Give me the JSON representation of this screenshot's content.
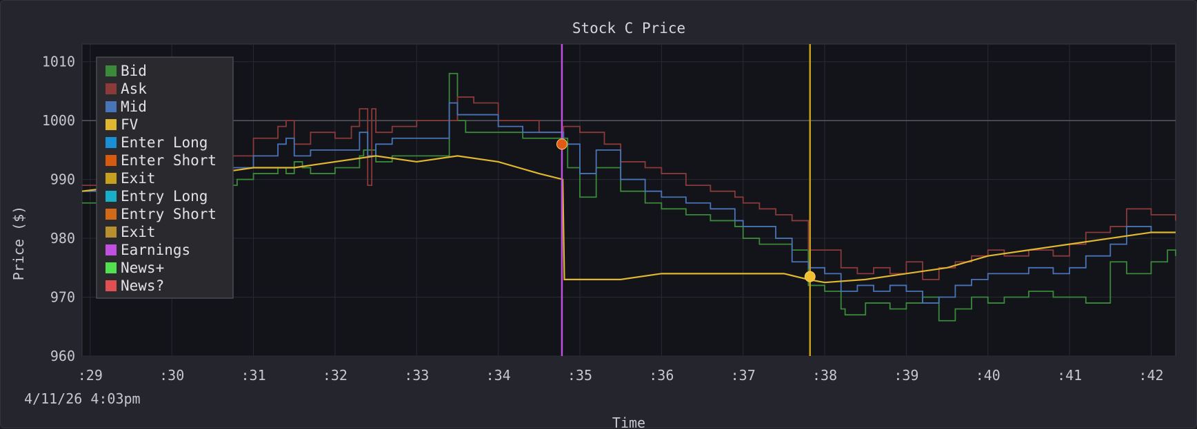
{
  "timestamp": "4/11/26 4:03pm",
  "chart_data": {
    "type": "line",
    "title": "Stock C Price",
    "xlabel": "Time",
    "ylabel": "Price ($)",
    "xlim": [
      28.9,
      42.3
    ],
    "ylim": [
      960,
      1013
    ],
    "x_ticks": [
      29,
      30,
      31,
      32,
      33,
      34,
      35,
      36,
      37,
      38,
      39,
      40,
      41,
      42
    ],
    "x_tick_labels": [
      ":29",
      ":30",
      ":31",
      ":32",
      ":33",
      ":34",
      ":35",
      ":36",
      ":37",
      ":38",
      ":39",
      ":40",
      ":41",
      ":42"
    ],
    "y_ticks": [
      960,
      970,
      980,
      990,
      1000,
      1010
    ],
    "y_tick_labels": [
      "960",
      "970",
      "980",
      "990",
      "1000",
      "1010"
    ],
    "grid": true,
    "reference_line_y": 1000,
    "legend": {
      "placement": "top-left",
      "entries": [
        {
          "label": "Bid",
          "color": "#3a8a3a"
        },
        {
          "label": "Ask",
          "color": "#8b3a3a"
        },
        {
          "label": "Mid",
          "color": "#4a74b8"
        },
        {
          "label": "FV",
          "color": "#e0b830"
        },
        {
          "label": "Enter Long",
          "color": "#1a8fd6"
        },
        {
          "label": "Enter Short",
          "color": "#d65a10"
        },
        {
          "label": "Exit",
          "color": "#c8a020"
        },
        {
          "label": "Entry Long",
          "color": "#18b0c8"
        },
        {
          "label": "Entry Short",
          "color": "#d06a18"
        },
        {
          "label": "Exit",
          "color": "#b89030"
        },
        {
          "label": "Earnings",
          "color": "#c050e0"
        },
        {
          "label": "News+",
          "color": "#50e050"
        },
        {
          "label": "News?",
          "color": "#e05050"
        }
      ]
    },
    "series": [
      {
        "name": "Bid",
        "color": "#3a8a3a",
        "x": [
          28.9,
          29.5,
          30.0,
          30.7,
          30.8,
          31.0,
          31.3,
          31.4,
          31.5,
          31.6,
          31.7,
          32.0,
          32.3,
          32.35,
          32.5,
          32.7,
          33.0,
          33.3,
          33.4,
          33.5,
          33.6,
          34.0,
          34.3,
          34.8,
          34.85,
          35.0,
          35.2,
          35.5,
          35.8,
          36.0,
          36.3,
          36.6,
          36.9,
          37.0,
          37.2,
          37.4,
          37.6,
          37.8,
          38.0,
          38.2,
          38.25,
          38.5,
          38.8,
          39.0,
          39.2,
          39.4,
          39.6,
          39.8,
          40.0,
          40.2,
          40.5,
          40.8,
          41.0,
          41.2,
          41.5,
          41.7,
          42.0,
          42.2,
          42.3
        ],
        "y": [
          986,
          987,
          989,
          989,
          990,
          991,
          992,
          991,
          993,
          992,
          991,
          992,
          994,
          995,
          993,
          994,
          994,
          994,
          1008,
          1000,
          998,
          998,
          997,
          997,
          992,
          987,
          992,
          988,
          986,
          985,
          984,
          983,
          982,
          980,
          979,
          979,
          978,
          972,
          971,
          968,
          967,
          969,
          968,
          969,
          970,
          966,
          968,
          970,
          969,
          970,
          971,
          970,
          970,
          969,
          976,
          974,
          976,
          978,
          977
        ]
      },
      {
        "name": "Ask",
        "color": "#8b3a3a",
        "x": [
          28.9,
          29.5,
          30.0,
          30.5,
          31.0,
          31.3,
          31.4,
          31.5,
          31.7,
          32.0,
          32.2,
          32.3,
          32.4,
          32.45,
          32.5,
          32.7,
          33.0,
          33.3,
          33.5,
          33.7,
          34.0,
          34.3,
          34.5,
          34.8,
          35.0,
          35.3,
          35.5,
          35.8,
          36.0,
          36.3,
          36.6,
          36.9,
          37.0,
          37.2,
          37.4,
          37.6,
          37.8,
          38.0,
          38.2,
          38.4,
          38.6,
          38.8,
          39.0,
          39.2,
          39.4,
          39.6,
          39.8,
          40.0,
          40.2,
          40.5,
          40.8,
          41.0,
          41.2,
          41.5,
          41.7,
          42.0,
          42.3
        ],
        "y": [
          989,
          990,
          992,
          994,
          997,
          999,
          1000,
          996,
          998,
          997,
          999,
          1002,
          989,
          1002,
          998,
          999,
          1000,
          1000,
          1004,
          1003,
          1000,
          1000,
          998,
          999,
          998,
          996,
          993,
          992,
          991,
          989,
          988,
          987,
          986,
          985,
          984,
          983,
          978,
          978,
          975,
          974,
          975,
          974,
          976,
          973,
          975,
          976,
          977,
          978,
          977,
          978,
          977,
          979,
          981,
          982,
          985,
          984,
          983
        ]
      },
      {
        "name": "Mid",
        "color": "#4a74b8",
        "x": [
          28.9,
          29.5,
          30.0,
          30.5,
          31.0,
          31.3,
          31.4,
          31.5,
          31.7,
          32.0,
          32.3,
          32.4,
          32.5,
          32.7,
          33.0,
          33.3,
          33.4,
          33.5,
          33.7,
          34.0,
          34.3,
          34.6,
          34.8,
          35.0,
          35.2,
          35.5,
          35.8,
          36.0,
          36.3,
          36.6,
          36.9,
          37.0,
          37.2,
          37.4,
          37.6,
          37.8,
          38.0,
          38.2,
          38.4,
          38.6,
          38.8,
          39.0,
          39.2,
          39.4,
          39.6,
          39.8,
          40.0,
          40.2,
          40.5,
          40.8,
          41.0,
          41.2,
          41.5,
          41.7,
          42.0,
          42.3
        ],
        "y": [
          988,
          988,
          990,
          992,
          994,
          996,
          997,
          994,
          995,
          995,
          998,
          994,
          996,
          997,
          997,
          997,
          1003,
          1001,
          1001,
          999,
          998,
          998,
          996,
          991,
          995,
          990,
          988,
          987,
          986,
          985,
          983,
          982,
          982,
          980,
          976,
          975,
          974,
          971,
          972,
          971,
          972,
          971,
          969,
          970,
          972,
          973,
          974,
          974,
          975,
          974,
          975,
          977,
          979,
          982,
          981,
          981
        ]
      },
      {
        "name": "FV",
        "color": "#e0b830",
        "x": [
          28.9,
          29.5,
          30.0,
          30.5,
          31.0,
          31.5,
          32.0,
          32.5,
          33.0,
          33.5,
          34.0,
          34.5,
          34.79,
          34.81,
          35.0,
          35.5,
          36.0,
          36.5,
          37.0,
          37.5,
          37.8,
          38.0,
          38.5,
          39.0,
          39.5,
          40.0,
          40.5,
          41.0,
          41.5,
          42.0,
          42.3
        ],
        "y": [
          988,
          989,
          990,
          991,
          992,
          992,
          993,
          994,
          993,
          994,
          993,
          991,
          990,
          973,
          973,
          973,
          974,
          974,
          974,
          974,
          973,
          972.5,
          973,
          974,
          975,
          977,
          978,
          979,
          980,
          981,
          981
        ]
      }
    ],
    "vertical_events": [
      {
        "name": "Earnings",
        "x": 34.78,
        "color": "#c050e0"
      },
      {
        "name": "Exit",
        "x": 37.82,
        "color": "#c8a020"
      }
    ],
    "markers": [
      {
        "name": "Enter Short",
        "x": 34.78,
        "y": 996,
        "color": "#e05a18"
      },
      {
        "name": "Exit",
        "x": 37.82,
        "y": 973.5,
        "color": "#f0c030"
      }
    ]
  }
}
